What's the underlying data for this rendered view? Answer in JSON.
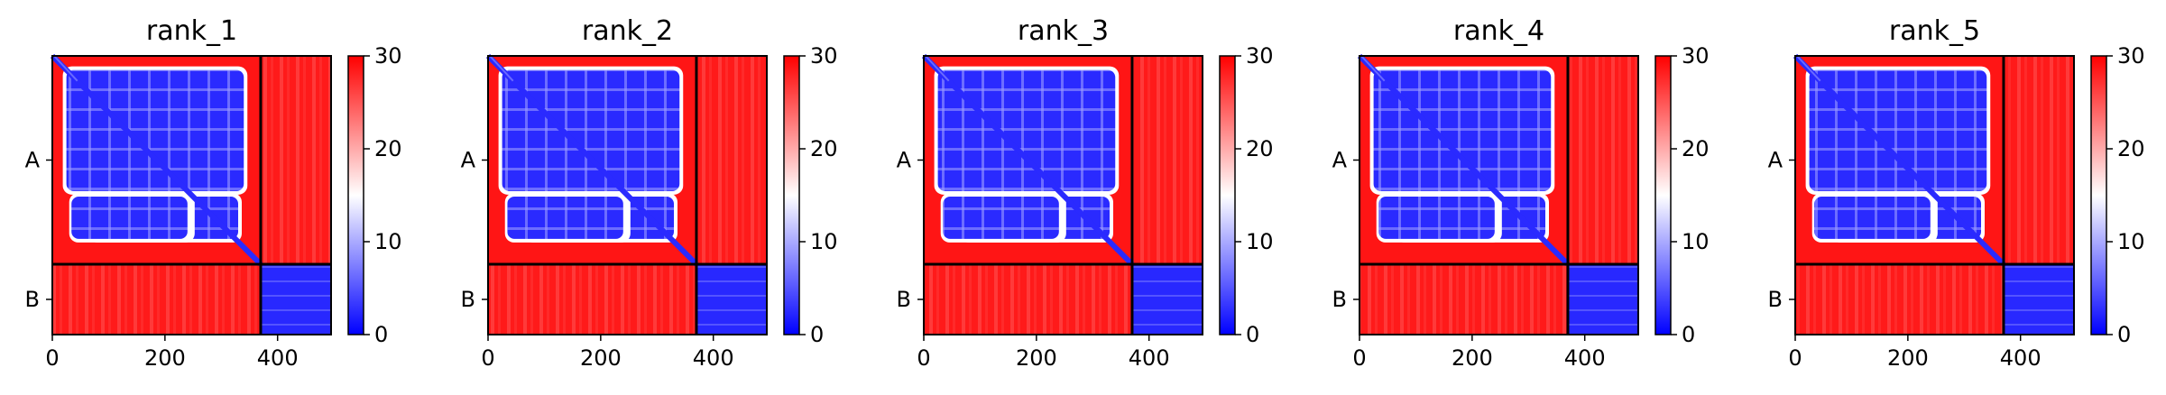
{
  "chart_data": {
    "type": "heatmap",
    "colorscale": {
      "low": "#0000ff",
      "mid": "#ffffff",
      "high": "#ff0000"
    },
    "color_range": [
      0,
      30
    ],
    "colorbar_ticks": [
      "0",
      "10",
      "20",
      "30"
    ],
    "x_ticks": [
      "0",
      "200",
      "400"
    ],
    "x_tick_values": [
      0,
      200,
      400
    ],
    "x_range": [
      0,
      495
    ],
    "chain_boundary": 370,
    "chains": [
      {
        "label": "A",
        "start": 0,
        "end": 370
      },
      {
        "label": "B",
        "start": 370,
        "end": 495
      }
    ],
    "panels": [
      {
        "title": "rank_1"
      },
      {
        "title": "rank_2"
      },
      {
        "title": "rank_3"
      },
      {
        "title": "rank_4"
      },
      {
        "title": "rank_5"
      }
    ]
  }
}
